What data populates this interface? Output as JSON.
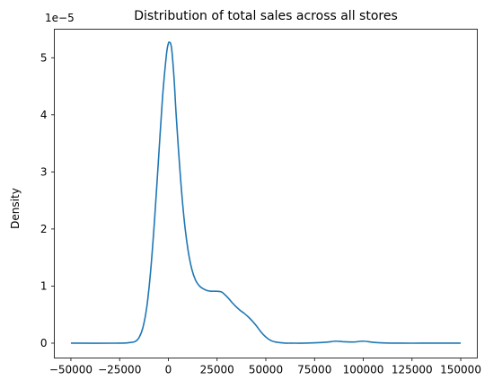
{
  "chart_data": {
    "type": "line",
    "title": "Distribution of total sales across all stores",
    "xlabel": "",
    "ylabel": "Density",
    "y_scale_label": "1e−5",
    "xlim": [
      -58500,
      158500
    ],
    "ylim": [
      -0.26,
      5.5
    ],
    "grid": false,
    "legend": "none",
    "x_ticks": [
      -50000,
      -25000,
      0,
      25000,
      50000,
      75000,
      100000,
      125000,
      150000
    ],
    "x_tick_labels": [
      "−50000",
      "−25000",
      "0",
      "25000",
      "50000",
      "75000",
      "100000",
      "125000",
      "150000"
    ],
    "y_ticks": [
      0,
      1,
      2,
      3,
      4,
      5
    ],
    "y_tick_labels": [
      "0",
      "1",
      "2",
      "3",
      "4",
      "5"
    ],
    "series": [
      {
        "color": "#1f77b4",
        "x": [
          -50000,
          -25000,
          -20000,
          -17000,
          -15000,
          -13000,
          -11000,
          -9000,
          -7000,
          -5000,
          -3000,
          -1000,
          0,
          500,
          1000,
          1500,
          2000,
          3000,
          4000,
          6000,
          8000,
          10000,
          12000,
          14000,
          16000,
          18000,
          20000,
          22000,
          24000,
          27000,
          29000,
          31000,
          33000,
          35000,
          37000,
          39000,
          41000,
          43000,
          45000,
          47000,
          49000,
          51000,
          53000,
          55000,
          57000,
          60000,
          63000,
          70000,
          78000,
          82000,
          86000,
          90000,
          95000,
          100000,
          105000,
          110000,
          120000,
          130000,
          140000,
          150000
        ],
        "y": [
          0,
          0.0,
          0.01,
          0.03,
          0.1,
          0.28,
          0.65,
          1.3,
          2.2,
          3.25,
          4.3,
          5.05,
          5.25,
          5.27,
          5.26,
          5.2,
          5.05,
          4.6,
          4.0,
          3.0,
          2.2,
          1.65,
          1.3,
          1.1,
          1.0,
          0.95,
          0.92,
          0.91,
          0.91,
          0.9,
          0.85,
          0.78,
          0.7,
          0.63,
          0.57,
          0.52,
          0.46,
          0.39,
          0.31,
          0.22,
          0.14,
          0.08,
          0.04,
          0.02,
          0.01,
          0.0,
          0.0,
          0.0,
          0.01,
          0.02,
          0.035,
          0.025,
          0.02,
          0.035,
          0.015,
          0.005,
          0.0,
          0.0,
          0.0,
          0.0
        ]
      }
    ]
  }
}
